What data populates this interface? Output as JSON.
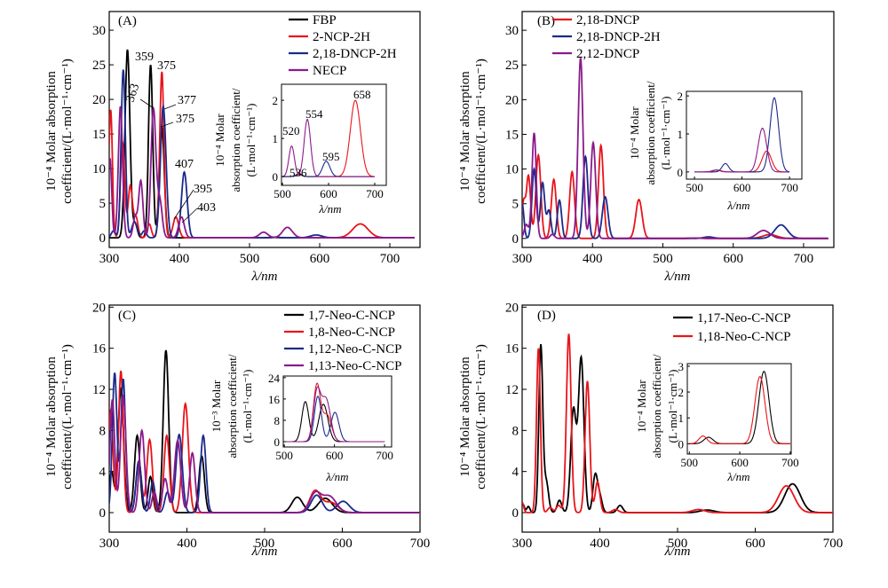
{
  "chart_data": [
    {
      "panel": "(A)",
      "type": "line",
      "xlabel": "λ/nm",
      "ylabel": [
        "10⁻⁴ Molar absorption",
        "coefficient/(L·mol⁻¹·cm⁻¹)"
      ],
      "xlim": [
        300,
        743
      ],
      "ylim": [
        -1.4,
        32.7
      ],
      "xticks": [
        300,
        400,
        500,
        600,
        700
      ],
      "yticks": [
        0,
        5,
        10,
        15,
        20,
        25,
        30
      ],
      "legend": "top-right",
      "series": [
        {
          "name": "FBP",
          "color": "#000000",
          "peaks_nm_height_sigma": [
            [
              326,
              27.2,
              3.5
            ],
            [
              337,
              2,
              3
            ],
            [
              359,
              25,
              3
            ],
            [
              375,
              16,
              3.5
            ],
            [
              536,
              0.05,
              6
            ]
          ]
        },
        {
          "name": "2-NCP-2H",
          "color": "#e8141b",
          "peaks_nm_height_sigma": [
            [
              302,
              18.5,
              2.5
            ],
            [
              319,
              13.8,
              3
            ],
            [
              330,
              7.5,
              3
            ],
            [
              338,
              3,
              3
            ],
            [
              357,
              2,
              3
            ],
            [
              375,
              24,
              3
            ],
            [
              395,
              3,
              4
            ],
            [
              536,
              0.06,
              6
            ],
            [
              658,
              2.0,
              11
            ]
          ]
        },
        {
          "name": "2,18-DNCP-2H",
          "color": "#1a2a8c",
          "peaks_nm_height_sigma": [
            [
              306,
              1,
              3
            ],
            [
              320,
              24.3,
              3
            ],
            [
              336,
              2.3,
              4
            ],
            [
              350,
              1,
              3
            ],
            [
              377,
              19,
              4
            ],
            [
              407,
              9.5,
              4
            ],
            [
              536,
              0.08,
              6
            ],
            [
              595,
              0.4,
              8
            ]
          ]
        },
        {
          "name": "NECP",
          "color": "#8b1a8b",
          "peaks_nm_height_sigma": [
            [
              301,
              11.5,
              2.5
            ],
            [
              316,
              19,
              3
            ],
            [
              337,
              3,
              3
            ],
            [
              345,
              8.2,
              3
            ],
            [
              363,
              18.5,
              3.5
            ],
            [
              372,
              5.3,
              3.5
            ],
            [
              403,
              3,
              4
            ],
            [
              520,
              0.8,
              6
            ],
            [
              554,
              1.5,
              7
            ]
          ]
        }
      ],
      "annotations": [
        "359",
        "375",
        "363",
        "377",
        "375",
        "407",
        "395",
        "403"
      ],
      "inset": {
        "xlabel": "λ/nm",
        "ylabel": [
          "10⁻⁴ Molar",
          "absorption coefficient/",
          "(L·mol⁻¹·cm⁻¹)"
        ],
        "xlim": [
          498,
          725
        ],
        "ylim": [
          -0.23,
          2.42
        ],
        "xticks": [
          500,
          600,
          700
        ],
        "yticks": [
          0,
          1,
          2
        ],
        "scale": 1,
        "annotations": [
          "658",
          "554",
          "520",
          "595",
          "536"
        ]
      }
    },
    {
      "panel": "(B)",
      "type": "line",
      "xlabel": "λ/nm",
      "ylabel": [
        "10⁻⁴ Molar absorption",
        "coefficient/(L·mol⁻¹·cm⁻¹)"
      ],
      "xlim": [
        300,
        743
      ],
      "ylim": [
        -1.3,
        32.7
      ],
      "xticks": [
        300,
        400,
        500,
        600,
        700
      ],
      "yticks": [
        0,
        5,
        10,
        15,
        20,
        25,
        30
      ],
      "legend": "top-right",
      "series": [
        {
          "name": "2,18-DNCP",
          "color": "#e8141b",
          "peaks_nm_height_sigma": [
            [
              302,
              5,
              2.5
            ],
            [
              309,
              9,
              3
            ],
            [
              323,
              12,
              3.5
            ],
            [
              345,
              8.5,
              3.5
            ],
            [
              371,
              9.6,
              3.5
            ],
            [
              412,
              13.4,
              3.5
            ],
            [
              466,
              5.6,
              4.5
            ],
            [
              545,
              0.05,
              8
            ],
            [
              652,
              0.55,
              10
            ]
          ]
        },
        {
          "name": "2,18-DNCP-2H",
          "color": "#1a2a8c",
          "peaks_nm_height_sigma": [
            [
              300,
              5,
              2.5
            ],
            [
              317,
              10,
              3
            ],
            [
              329,
              8,
              3
            ],
            [
              338,
              4,
              3
            ],
            [
              353,
              5.5,
              3
            ],
            [
              390,
              11.8,
              3.5
            ],
            [
              418,
              6,
              4
            ],
            [
              565,
              0.22,
              7
            ],
            [
              668,
              1.95,
              9
            ]
          ]
        },
        {
          "name": "2,12-DNCP",
          "color": "#8b1a8b",
          "peaks_nm_height_sigma": [
            [
              306,
              2,
              3
            ],
            [
              317,
              15.2,
              3
            ],
            [
              343,
              0.6,
              3
            ],
            [
              383,
              26,
              3.5
            ],
            [
              401,
              13.8,
              3.5
            ],
            [
              548,
              0.05,
              8
            ],
            [
              643,
              1.15,
              9
            ]
          ]
        }
      ],
      "inset": {
        "xlabel": "λ/nm",
        "ylabel": [
          "10⁻⁴ Molar",
          "absorption coefficient/",
          "(L·mol⁻¹·cm⁻¹)"
        ],
        "xlim": [
          483,
          726
        ],
        "ylim": [
          -0.19,
          2.12
        ],
        "xticks": [
          500,
          600,
          700
        ],
        "yticks": [
          0,
          1,
          2
        ],
        "scale": 1
      }
    },
    {
      "panel": "(C)",
      "type": "line",
      "xlabel": "λ/nm",
      "ylabel": [
        "10⁻⁴ Molar absorption",
        "coefficient/(L·mol⁻¹·cm⁻¹)"
      ],
      "xlim": [
        300,
        700
      ],
      "ylim": [
        -1.9,
        20.2
      ],
      "xticks": [
        300,
        400,
        500,
        600,
        700
      ],
      "yticks": [
        0,
        4,
        8,
        12,
        16,
        20
      ],
      "legend": "top-right",
      "series": [
        {
          "name": "1,7-Neo-C-NCP",
          "color": "#000000",
          "peaks_nm_height_sigma": [
            [
              303,
              4,
              3
            ],
            [
              315,
              12,
              3.5
            ],
            [
              336,
              7.5,
              3.5
            ],
            [
              353,
              3.5,
              3
            ],
            [
              373,
              15.8,
              3.5
            ],
            [
              419,
              5.5,
              3.5
            ],
            [
              542,
              1.5,
              7
            ],
            [
              578,
              1.4,
              9
            ]
          ]
        },
        {
          "name": "1,8-Neo-C-NCP",
          "color": "#e8141b",
          "peaks_nm_height_sigma": [
            [
              302,
              10,
              3
            ],
            [
              315,
              13.8,
              3
            ],
            [
              338,
              5,
              3.5
            ],
            [
              352,
              7.1,
              3.5
            ],
            [
              374,
              7.5,
              3.5
            ],
            [
              398,
              10.6,
              4
            ],
            [
              565,
              2.1,
              7
            ],
            [
              585,
              1,
              9
            ]
          ]
        },
        {
          "name": "1,12-Neo-C-NCP",
          "color": "#1a2a8c",
          "peaks_nm_height_sigma": [
            [
              307,
              13.6,
              3
            ],
            [
              318,
              13,
              3
            ],
            [
              338,
              5,
              3.5
            ],
            [
              356,
              3,
              3
            ],
            [
              375,
              2,
              3.5
            ],
            [
              390,
              7.6,
              4
            ],
            [
              421,
              7.5,
              3.5
            ],
            [
              567,
              1.7,
              7
            ],
            [
              601,
              1.1,
              8
            ]
          ]
        },
        {
          "name": "1,13-Neo-C-NCP",
          "color": "#8b1a8b",
          "peaks_nm_height_sigma": [
            [
              304,
              11,
              3
            ],
            [
              318,
              11.3,
              3.5
            ],
            [
              342,
              8,
              3.5
            ],
            [
              358,
              2,
              3
            ],
            [
              372,
              3.3,
              3.5
            ],
            [
              388,
              7,
              4
            ],
            [
              407,
              5.8,
              3.5
            ],
            [
              565,
              1.8,
              7
            ],
            [
              583,
              1.6,
              9
            ]
          ]
        }
      ],
      "inset": {
        "xlabel": "λ/nm",
        "ylabel": [
          "10⁻³ Molar",
          "absorption coefficient/",
          "(L·mol⁻¹·cm⁻¹)"
        ],
        "xlim": [
          498,
          714
        ],
        "ylim": [
          -2,
          24.6
        ],
        "xticks": [
          500,
          600,
          700
        ],
        "yticks": [
          0,
          8,
          16,
          24
        ],
        "scale": 10
      }
    },
    {
      "panel": "(D)",
      "type": "line",
      "xlabel": "λ/nm",
      "ylabel": [
        "10⁻⁴ Molar absorption",
        "coefficient/(L·mol⁻¹·cm⁻¹)"
      ],
      "xlim": [
        300,
        700
      ],
      "ylim": [
        -1.9,
        20.2
      ],
      "xticks": [
        300,
        400,
        500,
        600,
        700
      ],
      "yticks": [
        0,
        4,
        8,
        12,
        16,
        20
      ],
      "legend": "top-right",
      "series": [
        {
          "name": "1,17-Neo-C-NCP",
          "color": "#000000",
          "peaks_nm_height_sigma": [
            [
              301,
              0.8,
              2
            ],
            [
              308,
              0.6,
              2
            ],
            [
              324,
              16.2,
              2.5
            ],
            [
              331,
              3,
              3
            ],
            [
              348,
              1.2,
              3
            ],
            [
              366,
              10,
              3.5
            ],
            [
              376,
              15,
              3.5
            ],
            [
              394,
              3.6,
              3
            ],
            [
              400,
              1.5,
              3
            ],
            [
              426,
              0.7,
              3.5
            ],
            [
              538,
              0.25,
              9
            ],
            [
              648,
              2.8,
              10
            ]
          ]
        },
        {
          "name": "1,18-Neo-C-NCP",
          "color": "#e8141b",
          "peaks_nm_height_sigma": [
            [
              300,
              1,
              2
            ],
            [
              321,
              16,
              2.5
            ],
            [
              336,
              0.5,
              3
            ],
            [
              347,
              0.7,
              3
            ],
            [
              360,
              17.4,
              3
            ],
            [
              384,
              12.8,
              3
            ],
            [
              397,
              3,
              3
            ],
            [
              420,
              0.3,
              4
            ],
            [
              527,
              0.3,
              8
            ],
            [
              640,
              2.6,
              10
            ]
          ]
        }
      ],
      "inset": {
        "xlabel": "λ/nm",
        "ylabel": [
          "10⁻⁴ Molar",
          "absorption coefficient/",
          "(L·mol⁻¹·cm⁻¹)"
        ],
        "xlim": [
          496,
          702
        ],
        "ylim": [
          -0.4,
          3.1
        ],
        "xticks": [
          500,
          600,
          700
        ],
        "yticks": [
          0,
          1,
          2,
          3
        ],
        "scale": 1
      }
    }
  ]
}
